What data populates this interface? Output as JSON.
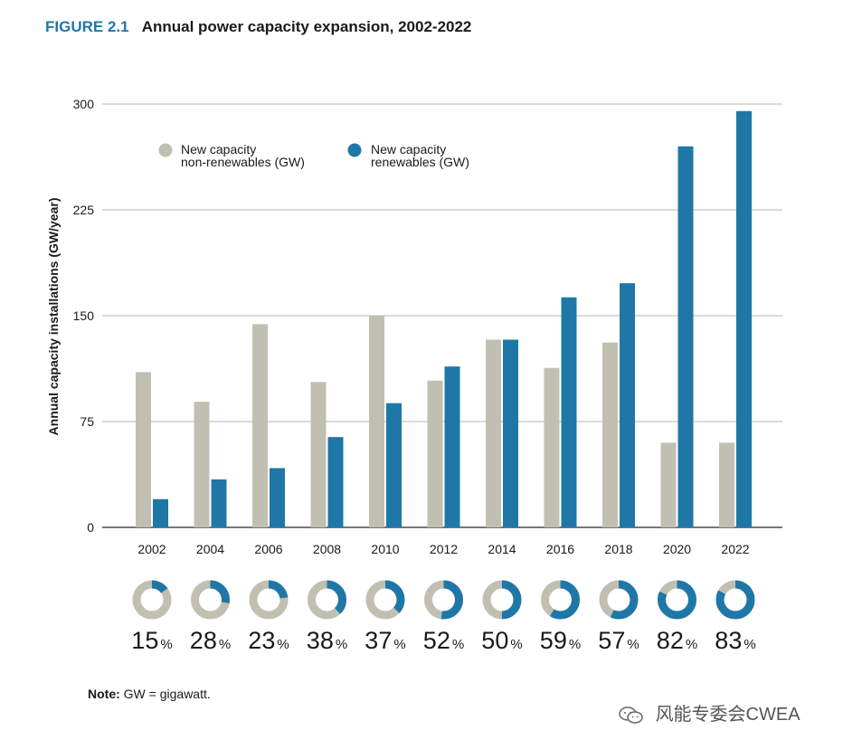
{
  "figure": {
    "label": "FIGURE 2.1",
    "title": "Annual power capacity expansion, 2002-2022"
  },
  "note": {
    "label": "Note:",
    "text": "GW = gigawatt."
  },
  "watermark": {
    "text": "风能专委会CWEA",
    "icon": "wechat-icon"
  },
  "colors": {
    "non_renewable": "#c0bfb1",
    "renewable": "#1f77a8",
    "accent": "#1f77a8",
    "grid": "#b5b5b5"
  },
  "chart_data": {
    "type": "bar",
    "title": "Annual power capacity expansion, 2002-2022",
    "xlabel": "",
    "ylabel": "Annual capacity installations (GW/year)",
    "ylim": [
      0,
      300
    ],
    "yticks": [
      0,
      75,
      150,
      225,
      300
    ],
    "grid": true,
    "legend_position": "top-left",
    "categories": [
      "2002",
      "2004",
      "2006",
      "2008",
      "2010",
      "2012",
      "2014",
      "2016",
      "2018",
      "2020",
      "2022"
    ],
    "series": [
      {
        "name": "New capacity non-renewables (GW)",
        "legend_lines": [
          "New capacity",
          "non-renewables (GW)"
        ],
        "values": [
          110,
          89,
          144,
          103,
          150,
          104,
          133,
          113,
          131,
          60,
          60
        ]
      },
      {
        "name": "New capacity renewables (GW)",
        "legend_lines": [
          "New capacity",
          "renewables (GW)"
        ],
        "values": [
          20,
          34,
          42,
          64,
          88,
          114,
          133,
          163,
          173,
          270,
          295
        ]
      }
    ],
    "renewable_share_percent": [
      15,
      28,
      23,
      38,
      37,
      52,
      50,
      59,
      57,
      82,
      83
    ],
    "share_unit": "%"
  }
}
